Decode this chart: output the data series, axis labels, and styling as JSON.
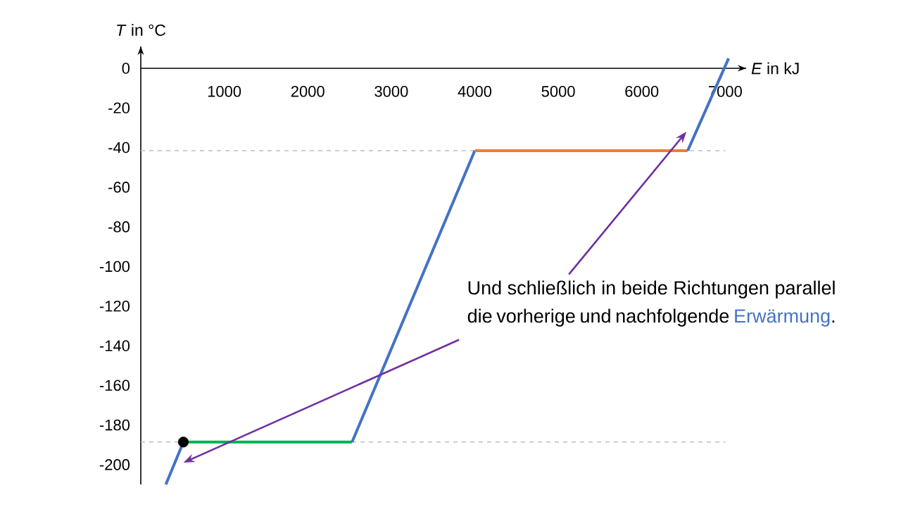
{
  "chart_data": {
    "type": "line",
    "xlabel": "*E* in kJ",
    "ylabel": "*T* in °C",
    "xlim": [
      0,
      7250
    ],
    "ylim": [
      -210,
      11
    ],
    "xticks": [
      1000,
      2000,
      3000,
      4000,
      5000,
      6000,
      7000
    ],
    "yticks": [
      -200,
      -180,
      -160,
      -140,
      -120,
      -100,
      -80,
      -60,
      -40,
      -20,
      0
    ],
    "grid": false,
    "line_style": "solid",
    "series": [
      {
        "color": "#4472c4",
        "x": [
          300,
          510
        ],
        "values": [
          -210,
          -188.6
        ]
      },
      {
        "color": "#00b050",
        "x": [
          510,
          2530
        ],
        "values": [
          -188.6,
          -188.6
        ]
      },
      {
        "color": "#4472c4",
        "x": [
          2530,
          4000
        ],
        "values": [
          -188.6,
          -41.6
        ]
      },
      {
        "color": "#ed7d31",
        "x": [
          4000,
          6550
        ],
        "values": [
          -41.6,
          -41.6
        ]
      },
      {
        "color": "#4472c4",
        "x": [
          6550,
          7040
        ],
        "values": [
          -41.6,
          5
        ]
      },
      {
        "type": "scatter",
        "color": "#000000",
        "x": [
          510
        ],
        "values": [
          -188.6
        ]
      }
    ],
    "ref_lines": [
      {
        "axis": "y",
        "value": -41.6,
        "color": "#bfbfbf",
        "line_style": "dashed"
      },
      {
        "axis": "y",
        "value": -188.6,
        "color": "#bfbfbf",
        "line_style": "dashed"
      }
    ],
    "annotations": [
      "Und schließlich in beide Richtungen parallel die vorherige und nachfolgende",
      "Erwärmung",
      "."
    ]
  }
}
